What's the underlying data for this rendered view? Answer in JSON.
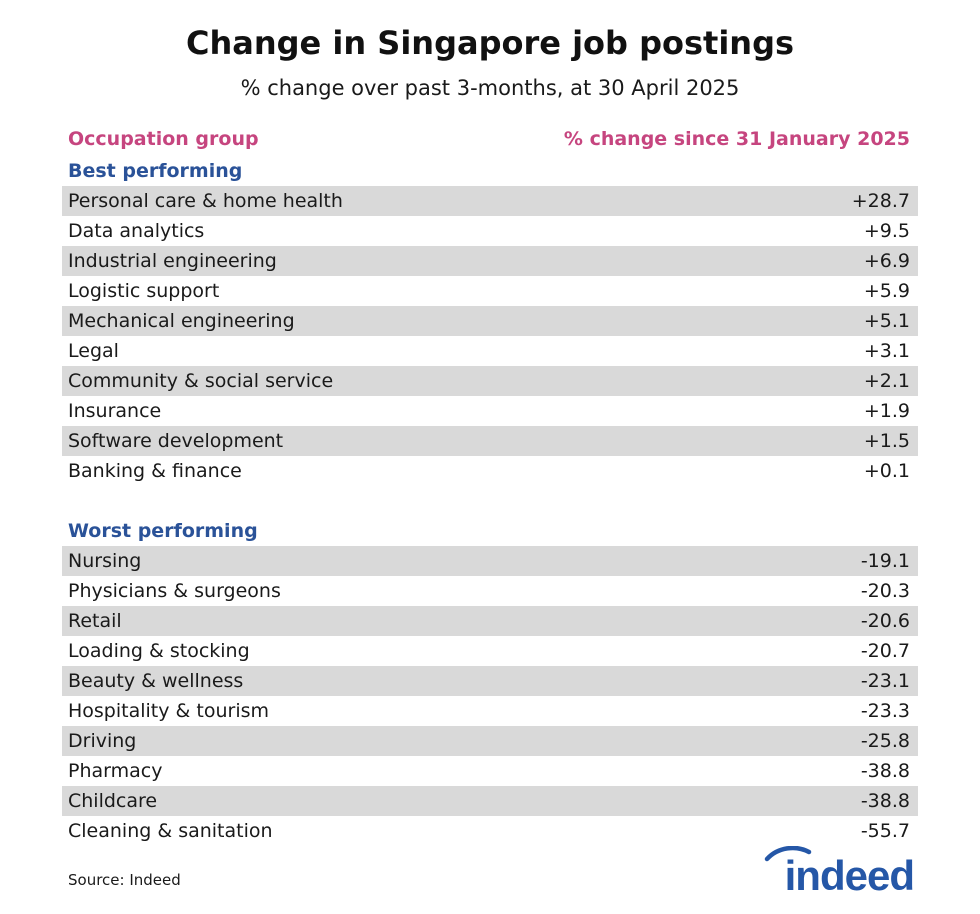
{
  "title": "Change in Singapore job postings",
  "subtitle": "% change over past 3-months, at 30 April 2025",
  "chart_data": {
    "type": "table",
    "columns": [
      "Occupation group",
      "% change since 31 January 2025"
    ],
    "sections": [
      {
        "name": "Best performing",
        "rows": [
          {
            "label": "Personal care & home health",
            "value": "+28.7"
          },
          {
            "label": "Data analytics",
            "value": "+9.5"
          },
          {
            "label": "Industrial engineering",
            "value": "+6.9"
          },
          {
            "label": "Logistic support",
            "value": "+5.9"
          },
          {
            "label": "Mechanical engineering",
            "value": "+5.1"
          },
          {
            "label": "Legal",
            "value": "+3.1"
          },
          {
            "label": "Community & social service",
            "value": "+2.1"
          },
          {
            "label": "Insurance",
            "value": "+1.9"
          },
          {
            "label": "Software development",
            "value": "+1.5"
          },
          {
            "label": "Banking & finance",
            "value": "+0.1"
          }
        ]
      },
      {
        "name": "Worst performing",
        "rows": [
          {
            "label": "Nursing",
            "value": "-19.1"
          },
          {
            "label": "Physicians & surgeons",
            "value": "-20.3"
          },
          {
            "label": "Retail",
            "value": "-20.6"
          },
          {
            "label": "Loading & stocking",
            "value": "-20.7"
          },
          {
            "label": "Beauty & wellness",
            "value": "-23.1"
          },
          {
            "label": "Hospitality & tourism",
            "value": "-23.3"
          },
          {
            "label": "Driving",
            "value": "-25.8"
          },
          {
            "label": "Pharmacy",
            "value": "-38.8"
          },
          {
            "label": "Childcare",
            "value": "-38.8"
          },
          {
            "label": "Cleaning & sanitation",
            "value": "-55.7"
          }
        ]
      }
    ]
  },
  "source": "Source: Indeed",
  "logo": {
    "text": "indeed",
    "icon": "indeed-logo",
    "color": "#2557a7"
  },
  "colors": {
    "header": "#c6457f",
    "section": "#2a5298",
    "row_shade": "#d9d9d9"
  }
}
